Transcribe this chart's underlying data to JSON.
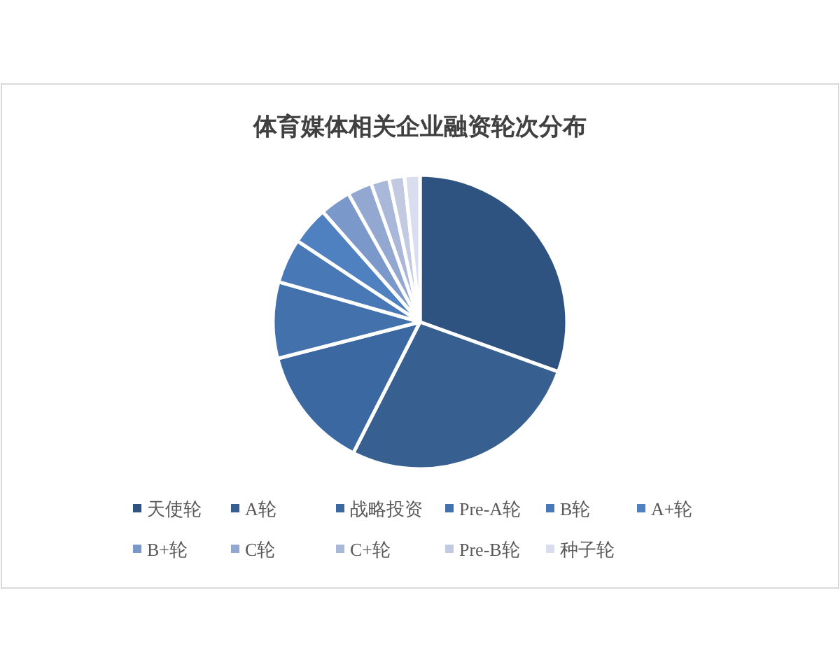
{
  "chart_data": {
    "type": "pie",
    "title": "体育媒体相关企业融资轮次分布",
    "categories": [
      "天使轮",
      "A轮",
      "战略投资",
      "Pre-A轮",
      "B轮",
      "A+轮",
      "B+轮",
      "C轮",
      "C+轮",
      "Pre-B轮",
      "种子轮"
    ],
    "values": [
      30.5,
      27,
      13.5,
      8.4,
      4.9,
      4.2,
      3.4,
      2.7,
      2,
      1.7,
      1.7
    ],
    "colors": [
      "#2f5380",
      "#375f8f",
      "#3b68a0",
      "#4371ab",
      "#4879b6",
      "#4f80bf",
      "#7b98ca",
      "#92a8d1",
      "#a9b7d9",
      "#c2cae2",
      "#d9dded"
    ],
    "legend": "bottom"
  }
}
